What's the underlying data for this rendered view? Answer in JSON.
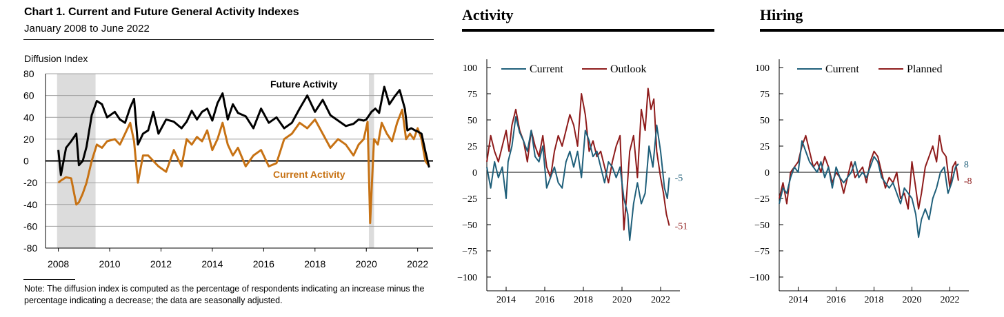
{
  "chart1": {
    "title": "Chart 1. Current and Future General Activity Indexes",
    "subtitle": "January 2008 to June 2022",
    "y_axis_title": "Diffusion Index",
    "note": "Note: The diffusion index is computed as the percentage of respondents indicating an increase minus the percentage indicating a decrease; the data are seasonally adjusted.",
    "series_labels": {
      "future": "Future Activity",
      "current": "Current Activity"
    }
  },
  "chart2": {
    "title": "Activity",
    "legend": [
      "Current",
      "Outlook"
    ],
    "end_labels": [
      "-5",
      "-51"
    ]
  },
  "chart3": {
    "title": "Hiring",
    "legend": [
      "Current",
      "Planned"
    ],
    "end_labels": [
      "8",
      "-8"
    ]
  },
  "colors": {
    "future": "#000000",
    "current_orange": "#c77214",
    "blue": "#1f5f7a",
    "red": "#8e1b1b",
    "recession": "#dcdcdc",
    "grid": "#a0a0a0"
  },
  "chart_data": [
    {
      "type": "line",
      "title": "Chart 1. Current and Future General Activity Indexes",
      "subtitle": "January 2008 to June 2022",
      "ylabel": "Diffusion Index",
      "ylim": [
        -80,
        80
      ],
      "yticks": [
        80,
        60,
        40,
        20,
        0,
        -20,
        -40,
        -60,
        -80
      ],
      "xticks": [
        "2008",
        "2010",
        "2012",
        "2014",
        "2016",
        "2018",
        "2020",
        "2022"
      ],
      "xlim": [
        2007.5,
        2022.6
      ],
      "shaded_periods": [
        [
          2007.95,
          2009.45
        ],
        [
          2020.1,
          2020.3
        ]
      ],
      "grid": true,
      "series": [
        {
          "name": "Future Activity",
          "x": [
            2008.0,
            2008.1,
            2008.3,
            2008.5,
            2008.7,
            2008.8,
            2008.95,
            2009.1,
            2009.3,
            2009.5,
            2009.7,
            2009.9,
            2010.2,
            2010.4,
            2010.6,
            2010.8,
            2010.95,
            2011.1,
            2011.3,
            2011.5,
            2011.7,
            2011.9,
            2012.2,
            2012.5,
            2012.8,
            2013.0,
            2013.2,
            2013.4,
            2013.6,
            2013.8,
            2014.0,
            2014.2,
            2014.4,
            2014.6,
            2014.8,
            2015.0,
            2015.3,
            2015.6,
            2015.9,
            2016.2,
            2016.5,
            2016.8,
            2017.1,
            2017.4,
            2017.7,
            2018.0,
            2018.3,
            2018.6,
            2018.9,
            2019.2,
            2019.5,
            2019.7,
            2019.9,
            2020.0,
            2020.2,
            2020.35,
            2020.5,
            2020.7,
            2020.9,
            2021.1,
            2021.3,
            2021.5,
            2021.6,
            2021.75,
            2021.9,
            2022.0,
            2022.15,
            2022.3,
            2022.45
          ],
          "y": [
            10,
            -13,
            12,
            18,
            25,
            -4,
            0,
            13,
            42,
            55,
            52,
            40,
            45,
            38,
            35,
            49,
            57,
            15,
            25,
            28,
            45,
            25,
            38,
            36,
            30,
            36,
            46,
            38,
            45,
            48,
            37,
            53,
            62,
            38,
            52,
            44,
            41,
            30,
            48,
            35,
            40,
            30,
            35,
            48,
            60,
            45,
            56,
            42,
            37,
            32,
            34,
            38,
            37,
            38,
            45,
            48,
            44,
            68,
            52,
            59,
            65,
            48,
            28,
            30,
            28,
            27,
            25,
            9,
            -6
          ]
        },
        {
          "name": "Current Activity",
          "x": [
            2008.0,
            2008.1,
            2008.3,
            2008.5,
            2008.7,
            2008.8,
            2008.95,
            2009.1,
            2009.3,
            2009.5,
            2009.7,
            2009.9,
            2010.2,
            2010.4,
            2010.6,
            2010.8,
            2010.95,
            2011.1,
            2011.3,
            2011.5,
            2011.7,
            2011.9,
            2012.2,
            2012.5,
            2012.8,
            2013.0,
            2013.2,
            2013.4,
            2013.6,
            2013.8,
            2014.0,
            2014.2,
            2014.4,
            2014.6,
            2014.8,
            2015.0,
            2015.3,
            2015.6,
            2015.9,
            2016.2,
            2016.5,
            2016.8,
            2017.1,
            2017.4,
            2017.7,
            2018.0,
            2018.3,
            2018.6,
            2018.9,
            2019.2,
            2019.5,
            2019.7,
            2019.9,
            2020.05,
            2020.15,
            2020.22,
            2020.3,
            2020.45,
            2020.6,
            2020.8,
            2021.0,
            2021.2,
            2021.4,
            2021.55,
            2021.7,
            2021.85,
            2022.0,
            2022.15,
            2022.3,
            2022.45
          ],
          "y": [
            -20,
            -18,
            -15,
            -16,
            -40,
            -38,
            -30,
            -20,
            0,
            15,
            12,
            18,
            20,
            15,
            25,
            35,
            18,
            -20,
            5,
            5,
            0,
            -5,
            -10,
            10,
            -5,
            20,
            15,
            22,
            18,
            28,
            10,
            20,
            35,
            15,
            5,
            12,
            -5,
            5,
            10,
            -5,
            -2,
            20,
            25,
            35,
            30,
            38,
            25,
            12,
            20,
            15,
            5,
            15,
            20,
            36,
            -57,
            -20,
            20,
            15,
            35,
            25,
            18,
            35,
            47,
            20,
            25,
            20,
            30,
            20,
            0,
            -5
          ]
        }
      ],
      "annotations": [
        "Future Activity",
        "Current Activity"
      ]
    },
    {
      "type": "line",
      "title": "Activity",
      "ylim": [
        -100,
        100
      ],
      "yticks": [
        100,
        75,
        50,
        25,
        0,
        -25,
        -50,
        -75,
        -100
      ],
      "xticks": [
        "2014",
        "2016",
        "2018",
        "2020",
        "2022"
      ],
      "xlim": [
        2013.0,
        2023.0
      ],
      "legend": "top-left",
      "series": [
        {
          "name": "Current",
          "x": [
            2013.0,
            2013.2,
            2013.4,
            2013.6,
            2013.8,
            2014.0,
            2014.1,
            2014.3,
            2014.5,
            2014.7,
            2014.9,
            2015.1,
            2015.3,
            2015.5,
            2015.7,
            2015.9,
            2016.1,
            2016.3,
            2016.5,
            2016.7,
            2016.9,
            2017.1,
            2017.3,
            2017.5,
            2017.7,
            2017.9,
            2018.1,
            2018.3,
            2018.5,
            2018.7,
            2018.9,
            2019.1,
            2019.3,
            2019.5,
            2019.7,
            2019.9,
            2020.1,
            2020.3,
            2020.4,
            2020.6,
            2020.8,
            2021.0,
            2021.2,
            2021.4,
            2021.6,
            2021.8,
            2022.0,
            2022.2,
            2022.35,
            2022.45
          ],
          "y": [
            5,
            -15,
            10,
            -5,
            5,
            -25,
            10,
            25,
            53,
            38,
            30,
            20,
            40,
            15,
            10,
            25,
            -15,
            -5,
            5,
            -10,
            -15,
            10,
            20,
            5,
            20,
            -5,
            40,
            30,
            15,
            20,
            5,
            -10,
            10,
            5,
            -5,
            5,
            -25,
            -40,
            -65,
            -30,
            -10,
            -30,
            -20,
            25,
            5,
            45,
            20,
            -15,
            -25,
            -5
          ]
        },
        {
          "name": "Outlook",
          "x": [
            2013.0,
            2013.2,
            2013.4,
            2013.6,
            2013.8,
            2014.0,
            2014.15,
            2014.3,
            2014.5,
            2014.7,
            2014.9,
            2015.1,
            2015.3,
            2015.5,
            2015.7,
            2015.9,
            2016.1,
            2016.3,
            2016.5,
            2016.7,
            2016.9,
            2017.1,
            2017.3,
            2017.5,
            2017.7,
            2017.9,
            2018.1,
            2018.3,
            2018.5,
            2018.7,
            2018.9,
            2019.1,
            2019.3,
            2019.5,
            2019.7,
            2019.9,
            2020.1,
            2020.25,
            2020.4,
            2020.6,
            2020.8,
            2021.0,
            2021.2,
            2021.35,
            2021.5,
            2021.65,
            2021.8,
            2022.0,
            2022.15,
            2022.3,
            2022.45
          ],
          "y": [
            10,
            35,
            20,
            10,
            25,
            40,
            20,
            45,
            60,
            40,
            30,
            10,
            40,
            25,
            15,
            35,
            5,
            -5,
            20,
            35,
            25,
            40,
            55,
            45,
            25,
            75,
            55,
            20,
            30,
            15,
            20,
            5,
            -10,
            10,
            25,
            35,
            -55,
            -20,
            20,
            35,
            -5,
            60,
            40,
            80,
            60,
            70,
            20,
            -5,
            -20,
            -40,
            -51
          ]
        }
      ],
      "end_labels": [
        "-5",
        "-51"
      ]
    },
    {
      "type": "line",
      "title": "Hiring",
      "ylim": [
        -100,
        100
      ],
      "yticks": [
        100,
        75,
        50,
        25,
        0,
        -25,
        -50,
        -75,
        -100
      ],
      "xticks": [
        "2014",
        "2016",
        "2018",
        "2020",
        "2022"
      ],
      "xlim": [
        2013.0,
        2023.0
      ],
      "legend": "top-left",
      "series": [
        {
          "name": "Current",
          "x": [
            2013.0,
            2013.2,
            2013.4,
            2013.6,
            2013.8,
            2014.0,
            2014.2,
            2014.4,
            2014.6,
            2014.8,
            2015.0,
            2015.2,
            2015.4,
            2015.6,
            2015.8,
            2016.0,
            2016.2,
            2016.4,
            2016.6,
            2016.8,
            2017.0,
            2017.2,
            2017.4,
            2017.6,
            2017.8,
            2018.0,
            2018.2,
            2018.4,
            2018.6,
            2018.8,
            2019.0,
            2019.2,
            2019.4,
            2019.6,
            2019.8,
            2020.0,
            2020.2,
            2020.35,
            2020.5,
            2020.7,
            2020.9,
            2021.1,
            2021.3,
            2021.5,
            2021.7,
            2021.9,
            2022.1,
            2022.3,
            2022.45
          ],
          "y": [
            -30,
            -15,
            -20,
            -5,
            5,
            0,
            30,
            20,
            10,
            5,
            0,
            10,
            -5,
            5,
            -15,
            5,
            -5,
            -10,
            -5,
            0,
            10,
            -5,
            0,
            -5,
            5,
            15,
            10,
            -5,
            -10,
            -15,
            -10,
            -20,
            -30,
            -15,
            -20,
            -25,
            -40,
            -62,
            -45,
            -35,
            -45,
            -25,
            -15,
            0,
            5,
            -20,
            -10,
            5,
            8
          ]
        },
        {
          "name": "Planned",
          "x": [
            2013.0,
            2013.2,
            2013.4,
            2013.6,
            2013.8,
            2014.0,
            2014.2,
            2014.4,
            2014.6,
            2014.8,
            2015.0,
            2015.2,
            2015.4,
            2015.6,
            2015.8,
            2016.0,
            2016.2,
            2016.4,
            2016.6,
            2016.8,
            2017.0,
            2017.2,
            2017.4,
            2017.6,
            2017.8,
            2018.0,
            2018.2,
            2018.4,
            2018.6,
            2018.8,
            2019.0,
            2019.2,
            2019.4,
            2019.6,
            2019.8,
            2020.0,
            2020.2,
            2020.35,
            2020.5,
            2020.7,
            2020.9,
            2021.1,
            2021.3,
            2021.45,
            2021.6,
            2021.8,
            2022.0,
            2022.15,
            2022.3,
            2022.45
          ],
          "y": [
            -25,
            -10,
            -30,
            0,
            5,
            10,
            25,
            35,
            20,
            5,
            10,
            0,
            15,
            5,
            -10,
            0,
            -5,
            -20,
            -5,
            10,
            -5,
            0,
            5,
            -10,
            10,
            20,
            15,
            0,
            -15,
            -5,
            -10,
            0,
            -25,
            -20,
            -35,
            10,
            -15,
            -35,
            -20,
            5,
            15,
            25,
            10,
            35,
            20,
            15,
            -15,
            5,
            10,
            -8
          ]
        }
      ],
      "end_labels": [
        "8",
        "-8"
      ]
    }
  ]
}
